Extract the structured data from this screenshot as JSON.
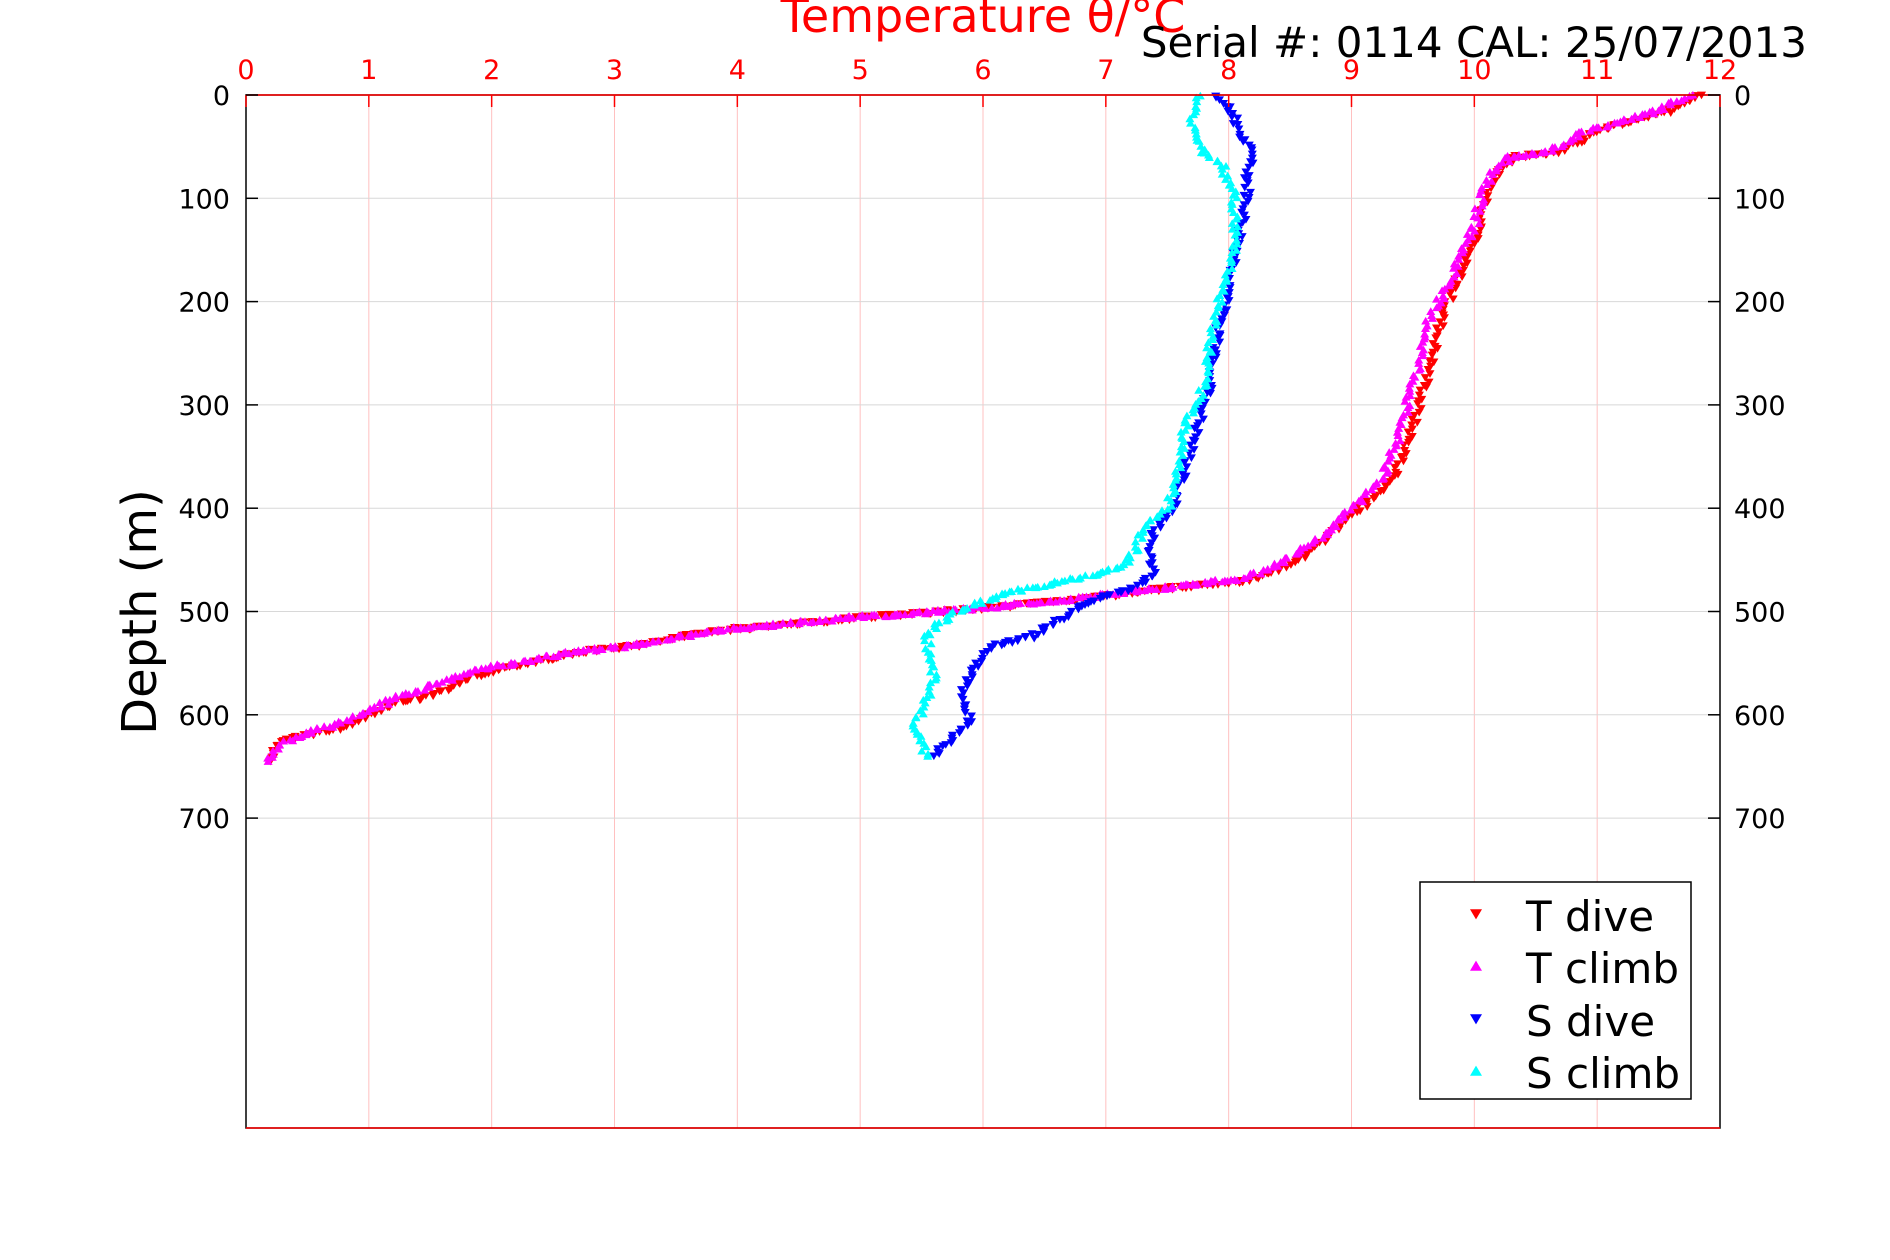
{
  "chart_data": {
    "type": "scatter",
    "title": "Temperature θ/°C",
    "annotation": "Serial #: 0114  CAL: 25/07/2013",
    "ylabel": "Depth (m)",
    "xlim": [
      0,
      12
    ],
    "ylim": [
      0,
      1000
    ],
    "y_reversed": true,
    "x_ticks": [
      "0",
      "1",
      "2",
      "3",
      "4",
      "5",
      "6",
      "7",
      "8",
      "9",
      "10",
      "11",
      "12"
    ],
    "y_ticks": [
      "0",
      "100",
      "200",
      "300",
      "400",
      "500",
      "600",
      "700"
    ],
    "grid": true,
    "legend_position": "bottom-right",
    "colors": {
      "axis": "#ff0000",
      "title": "#ff0000",
      "grid": "#d8d8d8",
      "grid_x": "#ffc0c0",
      "T_dive": "#ff0000",
      "T_climb": "#ff00ff",
      "S_dive": "#0000ff",
      "S_climb": "#00ffff"
    },
    "series": [
      {
        "name": "T dive",
        "marker": "triangle-down",
        "color": "#ff0000",
        "profile": [
          [
            11.85,
            0
          ],
          [
            11.6,
            15
          ],
          [
            11.3,
            25
          ],
          [
            11.0,
            35
          ],
          [
            10.7,
            55
          ],
          [
            10.35,
            60
          ],
          [
            10.2,
            75
          ],
          [
            10.1,
            100
          ],
          [
            10.05,
            130
          ],
          [
            9.95,
            150
          ],
          [
            9.85,
            185
          ],
          [
            9.75,
            210
          ],
          [
            9.65,
            260
          ],
          [
            9.55,
            300
          ],
          [
            9.45,
            340
          ],
          [
            9.35,
            370
          ],
          [
            9.2,
            390
          ],
          [
            9.0,
            405
          ],
          [
            8.85,
            425
          ],
          [
            8.7,
            440
          ],
          [
            8.5,
            455
          ],
          [
            8.2,
            470
          ],
          [
            7.5,
            478
          ],
          [
            6.8,
            488
          ],
          [
            6.2,
            495
          ],
          [
            5.5,
            502
          ],
          [
            5.0,
            506
          ],
          [
            4.5,
            512
          ],
          [
            4.0,
            517
          ],
          [
            3.5,
            525
          ],
          [
            3.2,
            533
          ],
          [
            2.8,
            538
          ],
          [
            2.5,
            545
          ],
          [
            2.0,
            558
          ],
          [
            1.75,
            568
          ],
          [
            1.5,
            582
          ],
          [
            1.2,
            590
          ],
          [
            1.0,
            600
          ],
          [
            0.8,
            612
          ],
          [
            0.6,
            618
          ],
          [
            0.4,
            622
          ],
          [
            0.25,
            630
          ],
          [
            0.2,
            640
          ],
          [
            0.2,
            645
          ]
        ]
      },
      {
        "name": "T climb",
        "marker": "triangle-up",
        "color": "#ff00ff",
        "profile": [
          [
            11.75,
            0
          ],
          [
            11.5,
            15
          ],
          [
            11.2,
            25
          ],
          [
            10.9,
            35
          ],
          [
            10.6,
            55
          ],
          [
            10.3,
            60
          ],
          [
            10.15,
            75
          ],
          [
            10.05,
            100
          ],
          [
            10.0,
            130
          ],
          [
            9.9,
            150
          ],
          [
            9.8,
            185
          ],
          [
            9.65,
            210
          ],
          [
            9.55,
            260
          ],
          [
            9.45,
            300
          ],
          [
            9.35,
            340
          ],
          [
            9.25,
            370
          ],
          [
            9.1,
            390
          ],
          [
            8.95,
            405
          ],
          [
            8.8,
            425
          ],
          [
            8.6,
            440
          ],
          [
            8.4,
            455
          ],
          [
            8.1,
            468
          ],
          [
            7.4,
            478
          ],
          [
            6.7,
            488
          ],
          [
            6.1,
            495
          ],
          [
            5.4,
            502
          ],
          [
            4.9,
            506
          ],
          [
            4.4,
            512
          ],
          [
            3.9,
            517
          ],
          [
            3.4,
            528
          ],
          [
            3.0,
            535
          ],
          [
            2.6,
            540
          ],
          [
            2.3,
            548
          ],
          [
            1.9,
            555
          ],
          [
            1.6,
            568
          ],
          [
            1.3,
            580
          ],
          [
            1.0,
            595
          ],
          [
            0.8,
            607
          ],
          [
            0.55,
            615
          ],
          [
            0.35,
            625
          ],
          [
            0.25,
            632
          ],
          [
            0.18,
            645
          ]
        ]
      },
      {
        "name": "S dive",
        "marker": "triangle-down",
        "color": "#0000ff",
        "profile": [
          [
            7.9,
            0
          ],
          [
            8.05,
            20
          ],
          [
            8.1,
            40
          ],
          [
            8.2,
            60
          ],
          [
            8.15,
            80
          ],
          [
            8.15,
            100
          ],
          [
            8.1,
            130
          ],
          [
            8.05,
            160
          ],
          [
            8.0,
            190
          ],
          [
            7.95,
            210
          ],
          [
            7.9,
            240
          ],
          [
            7.85,
            280
          ],
          [
            7.75,
            320
          ],
          [
            7.65,
            360
          ],
          [
            7.55,
            400
          ],
          [
            7.4,
            420
          ],
          [
            7.35,
            440
          ],
          [
            7.4,
            465
          ],
          [
            7.2,
            478
          ],
          [
            7.0,
            485
          ],
          [
            6.8,
            495
          ],
          [
            6.6,
            510
          ],
          [
            6.4,
            525
          ],
          [
            6.1,
            532
          ],
          [
            6.0,
            545
          ],
          [
            5.9,
            560
          ],
          [
            5.85,
            575
          ],
          [
            5.85,
            590
          ],
          [
            5.9,
            605
          ],
          [
            5.8,
            618
          ],
          [
            5.7,
            628
          ],
          [
            5.6,
            640
          ]
        ]
      },
      {
        "name": "S climb",
        "marker": "triangle-up",
        "color": "#00ffff",
        "profile": [
          [
            7.75,
            0
          ],
          [
            7.7,
            20
          ],
          [
            7.75,
            40
          ],
          [
            7.8,
            55
          ],
          [
            7.95,
            70
          ],
          [
            8.05,
            100
          ],
          [
            8.05,
            130
          ],
          [
            8.05,
            150
          ],
          [
            7.95,
            190
          ],
          [
            7.9,
            210
          ],
          [
            7.85,
            240
          ],
          [
            7.8,
            280
          ],
          [
            7.65,
            320
          ],
          [
            7.6,
            360
          ],
          [
            7.5,
            400
          ],
          [
            7.3,
            420
          ],
          [
            7.25,
            440
          ],
          [
            7.15,
            455
          ],
          [
            6.9,
            465
          ],
          [
            6.6,
            472
          ],
          [
            6.2,
            482
          ],
          [
            6.0,
            490
          ],
          [
            5.8,
            500
          ],
          [
            5.65,
            510
          ],
          [
            5.55,
            525
          ],
          [
            5.55,
            545
          ],
          [
            5.6,
            560
          ],
          [
            5.55,
            580
          ],
          [
            5.5,
            595
          ],
          [
            5.45,
            610
          ],
          [
            5.5,
            625
          ],
          [
            5.55,
            640
          ]
        ]
      }
    ]
  }
}
